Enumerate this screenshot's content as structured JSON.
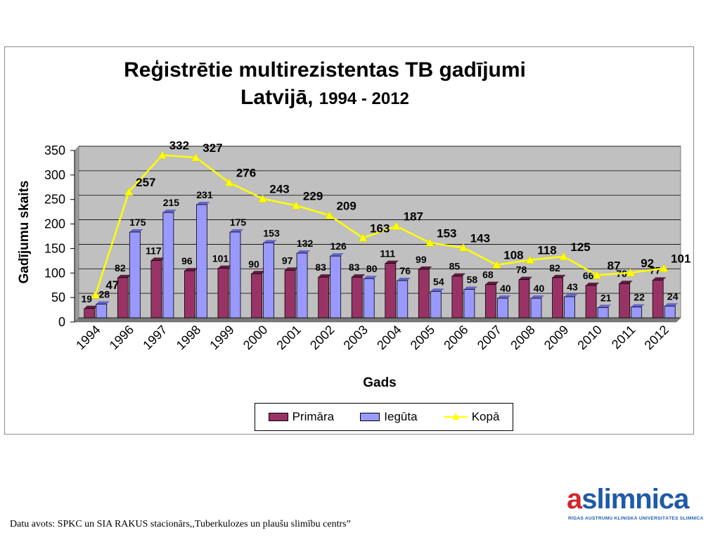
{
  "chart_data": {
    "type": "bar",
    "title": "Reģistrētie multirezistentas TB gadījumi",
    "title_line2_prefix": "Latvijā,",
    "title_line2_years": "1994 - 2012",
    "xlabel": "Gads",
    "ylabel": "Gadījumu skaits",
    "ylim": [
      0,
      350
    ],
    "yticks": [
      0,
      50,
      100,
      150,
      200,
      250,
      300,
      350
    ],
    "categories": [
      "1994",
      "1996",
      "1997",
      "1998",
      "1999",
      "2000",
      "2001",
      "2002",
      "2003",
      "2004",
      "2005",
      "2006",
      "2007",
      "2008",
      "2009",
      "2010",
      "2011",
      "2012"
    ],
    "series": [
      {
        "name": "Primāra",
        "type": "bar",
        "color": "#993366",
        "values": [
          19,
          82,
          117,
          96,
          101,
          90,
          97,
          83,
          83,
          111,
          99,
          85,
          68,
          78,
          82,
          66,
          70,
          77
        ]
      },
      {
        "name": "Iegūta",
        "type": "bar",
        "color": "#9999ff",
        "values": [
          28,
          175,
          215,
          231,
          175,
          153,
          132,
          126,
          80,
          76,
          54,
          58,
          40,
          40,
          43,
          21,
          22,
          24
        ]
      },
      {
        "name": "Kopā",
        "type": "line",
        "color": "#ffff00",
        "values": [
          47,
          257,
          332,
          327,
          276,
          243,
          229,
          209,
          163,
          187,
          153,
          143,
          108,
          118,
          125,
          87,
          92,
          101
        ]
      }
    ],
    "grid": true,
    "legend_position": "bottom",
    "plot_background": "#c0c0c0"
  },
  "footer": {
    "source": "Datu avots: SPKC un SIA RAKUS  stacionārs,,Tuberkulozes un plaušu slimību centrs”"
  },
  "logo": {
    "letter": "a",
    "name": "slimnica",
    "subtitle": "RĪGAS AUSTRUMU KLĪNISKĀ UNIVERSITĀTES SLIMNĪCA"
  }
}
